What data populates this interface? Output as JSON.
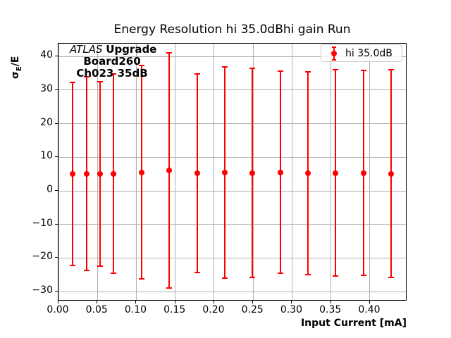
{
  "title": "Energy Resolution hi 35.0dBhi gain Run",
  "annotation": {
    "experiment": "ATLAS",
    "tag": "Upgrade",
    "board": "Board260",
    "channel": "Ch023 35dB"
  },
  "ylabel_parts": {
    "sigma": "σ",
    "sub": "E",
    "rest": "/E"
  },
  "legend": {
    "label": "hi 35.0dB"
  },
  "colors": {
    "series": "#ff0000",
    "grid": "#b0b0b0",
    "spine": "#000000",
    "legend_border": "#cccccc"
  },
  "chart_data": {
    "type": "scatter",
    "title": "Energy Resolution hi 35.0dBhi gain Run",
    "xlabel": "Input Current [mA]",
    "ylabel": "σ_E/E",
    "xlim": [
      0,
      0.448
    ],
    "ylim": [
      -32.9,
      43.8
    ],
    "xticks": [
      0.0,
      0.05,
      0.1,
      0.15,
      0.2,
      0.25,
      0.3,
      0.35,
      0.4
    ],
    "xtick_labels": [
      "0.00",
      "0.05",
      "0.10",
      "0.15",
      "0.20",
      "0.25",
      "0.30",
      "0.35",
      "0.40"
    ],
    "yticks": [
      40,
      30,
      20,
      10,
      0,
      -10,
      -20,
      -30
    ],
    "ytick_labels": [
      "40",
      "30",
      "20",
      "10",
      "0",
      "−10",
      "−20",
      "−30"
    ],
    "grid": true,
    "legend_position": "upper right",
    "series": [
      {
        "name": "hi 35.0dB",
        "color": "#ff0000",
        "marker": "o",
        "x": [
          0.018,
          0.036,
          0.053,
          0.071,
          0.107,
          0.142,
          0.178,
          0.214,
          0.249,
          0.285,
          0.32,
          0.356,
          0.392,
          0.427
        ],
        "y": [
          5.0,
          5.1,
          5.0,
          5.1,
          5.5,
          6.0,
          5.2,
          5.5,
          5.3,
          5.5,
          5.3,
          5.3,
          5.3,
          5.1
        ],
        "yerr": [
          27.2,
          28.8,
          27.4,
          29.7,
          31.7,
          35.0,
          29.5,
          31.4,
          31.1,
          30.1,
          30.2,
          30.7,
          30.5,
          30.9
        ]
      }
    ]
  }
}
